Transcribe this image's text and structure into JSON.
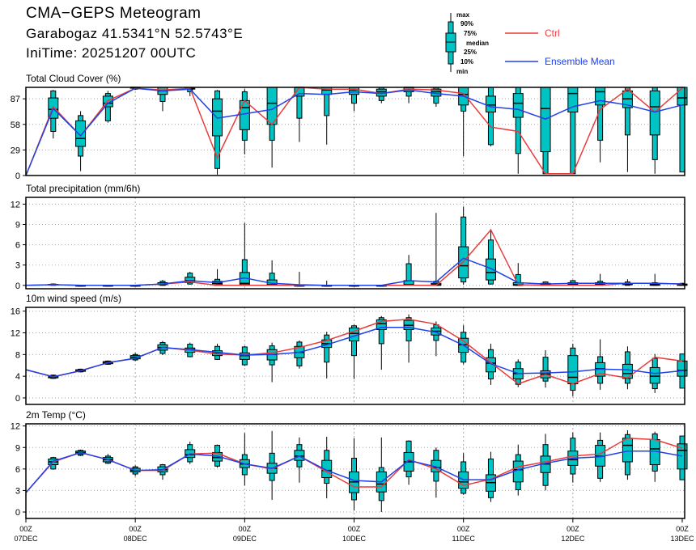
{
  "header": {
    "title": "CMA−GEPS Meteogram",
    "location": "Garabogaz 41.5341°N 52.5743°E",
    "init_time": "IniTime: 20251207 00UTC"
  },
  "legend": {
    "box_labels": [
      "max",
      "90%",
      "75%",
      "median",
      "25%",
      "10%",
      "min"
    ],
    "ctrl_label": "Ctrl",
    "mean_label": "Ensemble Mean",
    "ctrl_color": "#e83c3c",
    "mean_color": "#2040e8",
    "box_color": "#00c4c4"
  },
  "chart_data": {
    "type": "boxplot-meteogram",
    "x_step_hours": 6,
    "x_ticks": [
      {
        "hour": "00Z",
        "date": "07DEC"
      },
      {
        "hour": "00Z",
        "date": "08DEC"
      },
      {
        "hour": "00Z",
        "date": "09DEC"
      },
      {
        "hour": "00Z",
        "date": "10DEC"
      },
      {
        "hour": "00Z",
        "date": "11DEC"
      },
      {
        "hour": "00Z",
        "date": "12DEC"
      },
      {
        "hour": "00Z",
        "date": "13DEC"
      }
    ],
    "box_stat_order": [
      "min",
      "p10",
      "p25",
      "median",
      "p75",
      "p90",
      "max"
    ],
    "panels": [
      {
        "title": "Total Cloud Cover (%)",
        "ylim": [
          0,
          100
        ],
        "yticks": [
          0,
          29,
          58,
          87
        ],
        "ctrl": [
          0,
          78,
          45,
          85,
          99,
          97,
          99,
          20,
          85,
          58,
          100,
          98,
          98,
          93,
          98,
          97,
          93,
          55,
          50,
          2,
          2,
          75,
          98,
          72,
          99
        ],
        "mean": [
          0,
          76,
          45,
          82,
          99,
          96,
          98,
          65,
          70,
          75,
          93,
          92,
          95,
          93,
          97,
          93,
          90,
          78,
          75,
          64,
          78,
          85,
          80,
          72,
          80
        ],
        "boxes": [
          null,
          [
            42,
            50,
            65,
            75,
            88,
            96,
            97
          ],
          [
            5,
            22,
            33,
            42,
            62,
            68,
            73
          ],
          [
            60,
            62,
            78,
            82,
            90,
            93,
            96
          ],
          [
            97,
            98,
            99,
            100,
            100,
            100,
            100
          ],
          [
            73,
            84,
            92,
            96,
            100,
            100,
            100
          ],
          [
            90,
            95,
            98,
            99,
            100,
            100,
            100
          ],
          [
            1,
            8,
            45,
            73,
            87,
            96,
            97
          ],
          [
            24,
            40,
            52,
            77,
            85,
            95,
            98
          ],
          [
            9,
            40,
            58,
            82,
            100,
            100,
            100
          ],
          [
            38,
            65,
            90,
            100,
            100,
            100,
            100
          ],
          [
            35,
            68,
            92,
            97,
            100,
            100,
            100
          ],
          [
            73,
            82,
            92,
            97,
            100,
            100,
            100
          ],
          [
            82,
            85,
            90,
            95,
            98,
            100,
            100
          ],
          [
            82,
            90,
            95,
            100,
            100,
            100,
            100
          ],
          [
            78,
            82,
            90,
            95,
            98,
            100,
            100
          ],
          [
            22,
            73,
            80,
            92,
            100,
            100,
            100
          ],
          [
            33,
            35,
            72,
            80,
            90,
            100,
            100
          ],
          [
            2,
            25,
            66,
            82,
            93,
            100,
            100
          ],
          [
            2,
            2,
            27,
            76,
            100,
            100,
            100
          ],
          [
            2,
            2,
            72,
            93,
            100,
            100,
            100
          ],
          [
            15,
            40,
            80,
            95,
            100,
            100,
            100
          ],
          [
            4,
            46,
            77,
            87,
            96,
            100,
            100
          ],
          [
            2,
            18,
            46,
            78,
            96,
            100,
            100
          ],
          [
            4,
            4,
            80,
            88,
            100,
            100,
            100
          ]
        ]
      },
      {
        "title": "Total precipitation (mm/6h)",
        "ylim": [
          -0.5,
          13
        ],
        "yticks": [
          0,
          3,
          6,
          9,
          12
        ],
        "ctrl": [
          0,
          0.1,
          0,
          0,
          0,
          0.2,
          0.5,
          0,
          0,
          0,
          0,
          0,
          0,
          0,
          0,
          0,
          3.5,
          8.2,
          0.1,
          0,
          0,
          0,
          0.3,
          0.3,
          0.2
        ],
        "mean": [
          0,
          0.1,
          0,
          0,
          0,
          0.2,
          0.7,
          0.4,
          1.1,
          0.3,
          0.1,
          0,
          0,
          0,
          0.7,
          0.5,
          4.0,
          2.5,
          0.4,
          0.2,
          0.3,
          0.3,
          0.3,
          0.3,
          0.2
        ],
        "boxes": [
          null,
          [
            0,
            0,
            0.05,
            0.1,
            0.15,
            0.2,
            0.3
          ],
          [
            0,
            0,
            0,
            0,
            0,
            0,
            0
          ],
          [
            0,
            0,
            0,
            0,
            0,
            0,
            0
          ],
          [
            0,
            0,
            0,
            0,
            0,
            0,
            0
          ],
          [
            0,
            0,
            0.1,
            0.2,
            0.4,
            0.6,
            0.8
          ],
          [
            0.1,
            0.2,
            0.4,
            0.7,
            1.2,
            1.8,
            2
          ],
          [
            0,
            0,
            0.1,
            0.3,
            0.6,
            0.9,
            2.4
          ],
          [
            0,
            0,
            0.1,
            0.3,
            1.9,
            3.8,
            9.2
          ],
          [
            0,
            0,
            0,
            0.1,
            0.8,
            1.8,
            3.7
          ],
          [
            0,
            0,
            0,
            0,
            0,
            0,
            2
          ],
          [
            0,
            0,
            0,
            0,
            0,
            0,
            0.7
          ],
          [
            0,
            0,
            0,
            0,
            0,
            0,
            0
          ],
          [
            0,
            0,
            0,
            0,
            0,
            0,
            0
          ],
          [
            0,
            0,
            0,
            0.1,
            0.7,
            3.2,
            4.5
          ],
          [
            0,
            0,
            0,
            0.1,
            0.3,
            0.6,
            10.7
          ],
          [
            0.1,
            0.5,
            1.1,
            2.9,
            5.7,
            10.1,
            11.6
          ],
          [
            0.1,
            0.2,
            0.8,
            1.9,
            3.9,
            6.7,
            8.3
          ],
          [
            0,
            0,
            0,
            0.1,
            0.4,
            1.6,
            3.3
          ],
          [
            0,
            0,
            0,
            0.1,
            0.3,
            0.5,
            0.6
          ],
          [
            0,
            0,
            0.1,
            0.2,
            0.4,
            0.7,
            0.8
          ],
          [
            0,
            0,
            0.1,
            0.2,
            0.4,
            0.6,
            1.7
          ],
          [
            0,
            0,
            0.1,
            0.2,
            0.3,
            0.5,
            0.9
          ],
          [
            0,
            0,
            0,
            0.1,
            0.2,
            0.4,
            1.7
          ],
          [
            0,
            0,
            0,
            0.1,
            0.2,
            0.3,
            0.4
          ]
        ]
      },
      {
        "title": "10m wind speed (m/s)",
        "ylim": [
          -1.2,
          16.7
        ],
        "yticks": [
          0,
          4,
          8,
          12,
          16
        ],
        "ctrl": [
          5.2,
          3.9,
          5.0,
          6.5,
          7.3,
          9.3,
          8.8,
          8.1,
          7.9,
          8.3,
          9.3,
          10.6,
          12.3,
          14.1,
          14.5,
          13.6,
          10.5,
          6.5,
          2.6,
          4.3,
          2.6,
          4.5,
          3.7,
          7.5,
          6.8
        ],
        "mean": [
          5.2,
          3.9,
          5.0,
          6.5,
          7.3,
          9.3,
          8.9,
          8.4,
          7.9,
          8.0,
          8.4,
          9.8,
          11.4,
          13.0,
          13.0,
          12.1,
          9.7,
          6.3,
          4.5,
          4.6,
          4.8,
          5.3,
          5.2,
          4.5,
          5.0
        ],
        "boxes": [
          null,
          [
            3.5,
            3.6,
            3.7,
            3.9,
            4.1,
            4.2,
            4.3
          ],
          [
            4.7,
            4.8,
            4.9,
            5.0,
            5.2,
            5.3,
            5.4
          ],
          [
            6.1,
            6.2,
            6.3,
            6.5,
            6.7,
            6.8,
            6.9
          ],
          [
            6.8,
            7.0,
            7.2,
            7.5,
            7.8,
            8.0,
            8.3
          ],
          [
            7.9,
            8.2,
            8.8,
            9.3,
            9.8,
            10.2,
            10.5
          ],
          [
            7.5,
            7.6,
            8.4,
            8.9,
            9.2,
            9.9,
            10.2
          ],
          [
            7.0,
            7.1,
            7.8,
            8.3,
            8.7,
            9.5,
            10.0
          ],
          [
            5.9,
            6.1,
            7.1,
            7.8,
            8.3,
            9.4,
            9.6
          ],
          [
            2.9,
            6.1,
            7.0,
            8.0,
            8.9,
            9.6,
            10.2
          ],
          [
            5.4,
            5.9,
            7.4,
            8.4,
            9.5,
            10.3,
            10.6
          ],
          [
            3.6,
            6.6,
            9.3,
            10.0,
            10.7,
            11.6,
            12.2
          ],
          [
            3.5,
            7.8,
            10.5,
            11.9,
            12.9,
            13.3,
            13.5
          ],
          [
            5.2,
            10.0,
            12.6,
            13.7,
            14.4,
            14.8,
            15.1
          ],
          [
            6.5,
            10.5,
            12.6,
            13.4,
            14.3,
            14.8,
            15.4
          ],
          [
            7.7,
            10.6,
            11.6,
            12.3,
            12.9,
            13.5,
            14.1
          ],
          [
            6.2,
            6.6,
            8.4,
            9.8,
            11.0,
            12.1,
            13.4
          ],
          [
            2.4,
            3.5,
            4.8,
            6.4,
            7.4,
            8.9,
            10.0
          ],
          [
            2.0,
            2.5,
            3.5,
            4.5,
            5.4,
            6.6,
            7.1
          ],
          [
            1.9,
            3.1,
            3.7,
            4.4,
            5.0,
            7.5,
            8.8
          ],
          [
            0.3,
            1.4,
            2.6,
            3.8,
            7.8,
            9.2,
            10.0
          ],
          [
            1.5,
            2.7,
            4.0,
            5.4,
            6.5,
            7.6,
            10.8
          ],
          [
            1.6,
            2.7,
            3.6,
            4.5,
            6.2,
            8.5,
            9.5
          ],
          [
            0.9,
            1.7,
            2.7,
            4.0,
            5.6,
            7.3,
            8.1
          ],
          [
            1.8,
            1.8,
            4.0,
            5.1,
            6.8,
            8.1,
            8.1
          ]
        ]
      },
      {
        "title": "2m Temp (°C)",
        "ylim": [
          -0.9,
          12.3
        ],
        "yticks": [
          0,
          3,
          6,
          9,
          12
        ],
        "ctrl": [
          2.7,
          7.0,
          8.3,
          7.3,
          5.8,
          5.8,
          8.1,
          8.2,
          6.7,
          6.0,
          7.8,
          5.6,
          3.5,
          3.5,
          7.3,
          6.0,
          3.7,
          4.6,
          6.3,
          7.0,
          7.8,
          8.1,
          10.3,
          10.1,
          8.9
        ],
        "mean": [
          2.7,
          7.1,
          8.3,
          7.3,
          5.8,
          5.9,
          8.1,
          7.8,
          6.7,
          6.1,
          7.8,
          5.8,
          4.4,
          4.2,
          7.2,
          6.3,
          4.5,
          4.5,
          5.9,
          6.8,
          7.5,
          7.7,
          8.5,
          8.5,
          7.8
        ],
        "boxes": [
          null,
          [
            5.9,
            6.0,
            6.6,
            7.0,
            7.4,
            7.6,
            7.7
          ],
          [
            7.8,
            7.9,
            8.1,
            8.3,
            8.5,
            8.6,
            8.7
          ],
          [
            6.7,
            6.8,
            7.0,
            7.3,
            7.6,
            7.8,
            8.1
          ],
          [
            5.0,
            5.3,
            5.6,
            5.8,
            6.1,
            6.3,
            6.5
          ],
          [
            4.5,
            5.2,
            5.6,
            5.9,
            6.3,
            6.6,
            6.7
          ],
          [
            6.7,
            7.0,
            7.6,
            8.0,
            8.7,
            9.4,
            9.8
          ],
          [
            6.2,
            6.4,
            7.1,
            7.6,
            8.3,
            9.3,
            9.4
          ],
          [
            3.7,
            5.2,
            6.2,
            6.7,
            7.3,
            8.0,
            11.0
          ],
          [
            1.7,
            4.4,
            5.4,
            6.1,
            6.8,
            8.2,
            11.3
          ],
          [
            4.1,
            6.3,
            7.2,
            7.8,
            8.6,
            9.4,
            10.4
          ],
          [
            1.9,
            4.0,
            4.8,
            5.8,
            7.2,
            8.6,
            10.5
          ],
          [
            0.2,
            1.7,
            2.7,
            4.2,
            5.6,
            7.5,
            10.3
          ],
          [
            0,
            1.6,
            2.8,
            3.9,
            5.6,
            6.2,
            10.4
          ],
          [
            3.8,
            4.9,
            5.7,
            7.0,
            8.3,
            9.9,
            10.0
          ],
          [
            2.0,
            4.3,
            5.6,
            6.2,
            7.2,
            8.6,
            9.0
          ],
          [
            2.4,
            2.6,
            3.3,
            4.2,
            5.6,
            7.0,
            8.2
          ],
          [
            1.4,
            2.0,
            2.9,
            4.1,
            5.2,
            7.4,
            8.4
          ],
          [
            2.3,
            3.1,
            4.2,
            5.9,
            7.1,
            8.0,
            9.4
          ],
          [
            3.0,
            3.7,
            5.5,
            6.7,
            7.8,
            9.4,
            10.9
          ],
          [
            4.1,
            5.3,
            6.5,
            7.3,
            8.5,
            10.3,
            11.1
          ],
          [
            4.2,
            4.7,
            6.4,
            7.8,
            9.3,
            10.0,
            11.1
          ],
          [
            4.5,
            5.2,
            7.0,
            9.3,
            10.3,
            10.8,
            11.4
          ],
          [
            4.2,
            5.7,
            6.6,
            8.8,
            10.1,
            10.9,
            11.2
          ],
          [
            4.5,
            4.5,
            6.0,
            8.6,
            9.5,
            10.6,
            10.6
          ]
        ]
      }
    ]
  }
}
